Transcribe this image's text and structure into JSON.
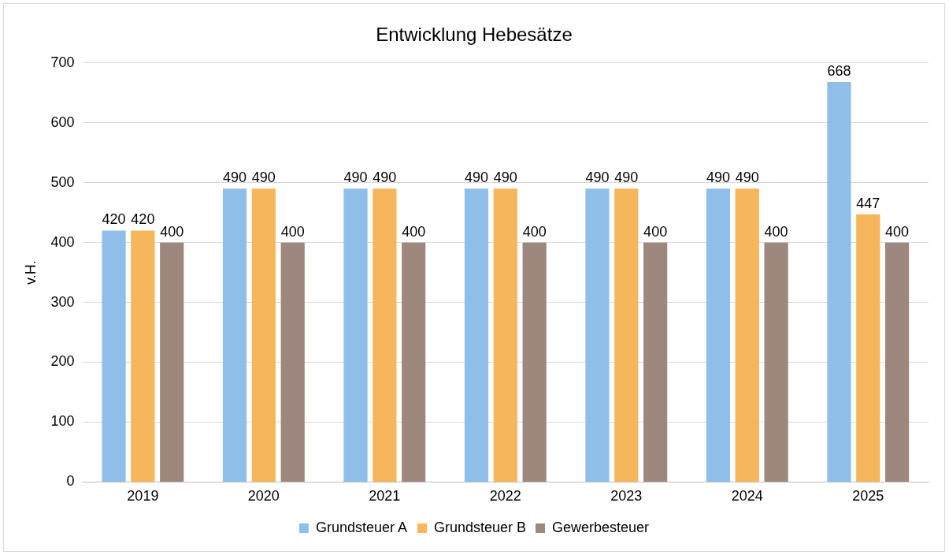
{
  "chart_data": {
    "type": "bar",
    "title": "Entwicklung Hebesätze",
    "ylabel": "v.H.",
    "categories": [
      "2019",
      "2020",
      "2021",
      "2022",
      "2023",
      "2024",
      "2025"
    ],
    "series": [
      {
        "name": "Grundsteuer A",
        "color": "#8fbfe8",
        "values": [
          420,
          490,
          490,
          490,
          490,
          490,
          668
        ]
      },
      {
        "name": "Grundsteuer B",
        "color": "#f5b65c",
        "values": [
          420,
          490,
          490,
          490,
          490,
          490,
          447
        ]
      },
      {
        "name": "Gewerbesteuer",
        "color": "#9e877c",
        "values": [
          400,
          400,
          400,
          400,
          400,
          400,
          400
        ]
      }
    ],
    "ylim": [
      0,
      700
    ],
    "yticks": [
      0,
      100,
      200,
      300,
      400,
      500,
      600,
      700
    ],
    "grid": "y",
    "legend": "bottom",
    "data_labels": true
  }
}
